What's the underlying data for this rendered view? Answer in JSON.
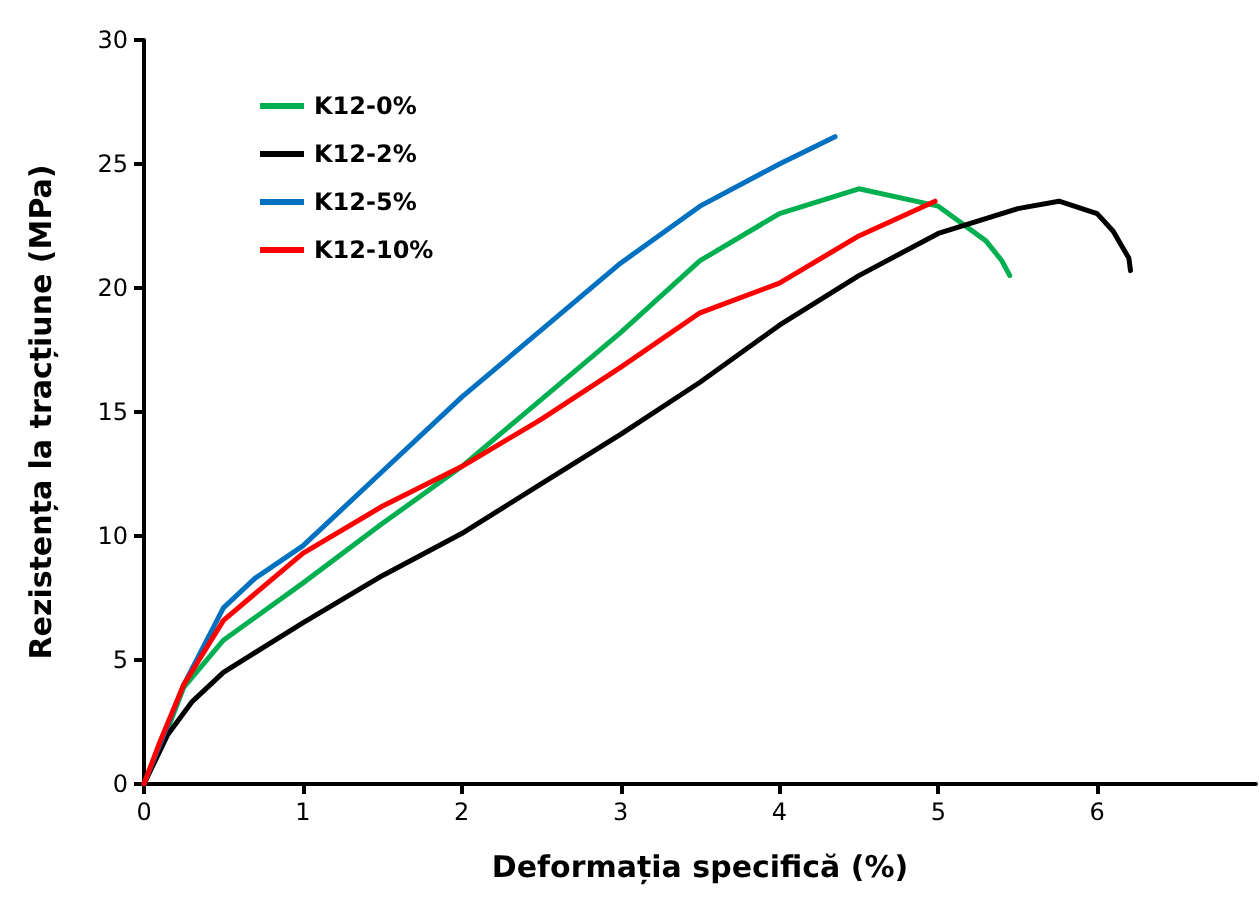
{
  "chart_data": {
    "type": "line",
    "xlabel": "Deformația specifică (%)",
    "ylabel": "Rezistența la tracțiune (MPa)",
    "xlim": [
      0,
      7
    ],
    "xticks": [
      0,
      1,
      2,
      3,
      4,
      5,
      6
    ],
    "ylim": [
      0,
      30
    ],
    "yticks": [
      0,
      5,
      10,
      15,
      20,
      25,
      30
    ],
    "grid": false,
    "legend": "top left",
    "marker": "none",
    "line_style": "solid",
    "series": [
      {
        "name": "K12-0%",
        "color": "#00b050",
        "x": [
          0,
          0.1,
          0.25,
          0.5,
          1,
          1.5,
          2,
          2.5,
          3,
          3.5,
          4,
          4.5,
          5,
          5.3,
          5.4,
          5.45
        ],
        "values": [
          0,
          1.4,
          3.9,
          5.8,
          8.1,
          10.5,
          12.8,
          15.5,
          18.2,
          21.1,
          23.0,
          24.0,
          23.3,
          21.9,
          21.1,
          20.5
        ]
      },
      {
        "name": "K12-2%",
        "color": "#000000",
        "x": [
          0,
          0.15,
          0.3,
          0.5,
          1,
          1.5,
          2,
          2.5,
          3,
          3.5,
          4,
          4.5,
          5,
          5.5,
          5.76,
          6,
          6.1,
          6.2,
          6.21
        ],
        "values": [
          0,
          2.0,
          3.3,
          4.5,
          6.5,
          8.4,
          10.1,
          12.1,
          14.1,
          16.2,
          18.5,
          20.5,
          22.2,
          23.2,
          23.5,
          23.0,
          22.3,
          21.2,
          20.7
        ]
      },
      {
        "name": "K12-5%",
        "color": "#0070c0",
        "x": [
          0,
          0.1,
          0.25,
          0.5,
          0.7,
          1,
          1.5,
          2,
          2.5,
          3,
          3.5,
          4,
          4.35
        ],
        "values": [
          0,
          1.6,
          4.0,
          7.1,
          8.3,
          9.6,
          12.6,
          15.6,
          18.3,
          21.0,
          23.3,
          25.0,
          26.1
        ]
      },
      {
        "name": "K12-10%",
        "color": "#ff0000",
        "x": [
          0,
          0.1,
          0.25,
          0.5,
          1,
          1.5,
          2,
          2.5,
          3,
          3.5,
          4,
          4.5,
          4.98
        ],
        "values": [
          0,
          1.7,
          4.0,
          6.6,
          9.3,
          11.2,
          12.8,
          14.7,
          16.8,
          19.0,
          20.2,
          22.1,
          23.5
        ]
      }
    ]
  }
}
